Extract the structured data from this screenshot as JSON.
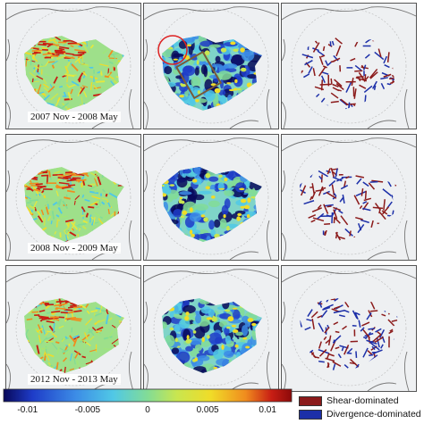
{
  "rows": [
    {
      "period": "2007 Nov - 2008 May"
    },
    {
      "period": "2008 Nov - 2009 May"
    },
    {
      "period": "2012 Nov - 2013 May"
    }
  ],
  "colorbar": {
    "ticks": [
      "-0.01",
      "-0.005",
      "0",
      "0.005",
      "0.01"
    ],
    "tick_values": [
      -0.01,
      -0.005,
      0,
      0.005,
      0.01
    ],
    "range": [
      -0.012,
      0.012
    ],
    "colormap": [
      "#08085a",
      "#1e3cc8",
      "#3c8ce6",
      "#50c8e6",
      "#82dc96",
      "#c8e650",
      "#f0dc28",
      "#f08c1e",
      "#c81e14",
      "#8c0a0a"
    ]
  },
  "legend": [
    {
      "label": "Shear-dominated",
      "color": "#8b1a1a"
    },
    {
      "label": "Divergence-dominated",
      "color": "#1c2fa8"
    }
  ]
}
